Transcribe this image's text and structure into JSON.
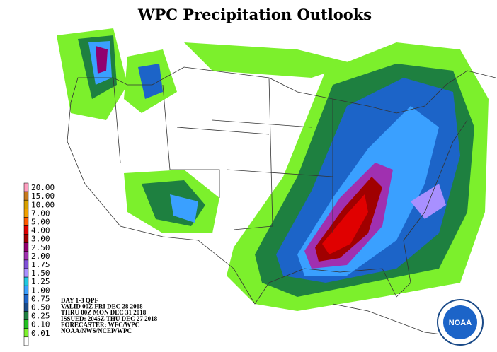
{
  "title": "WPC Precipitation Outlooks",
  "legend": [
    {
      "label": "20.00",
      "color": "#ff9fc0"
    },
    {
      "label": "15.00",
      "color": "#c87a1e"
    },
    {
      "label": "10.00",
      "color": "#d8a000"
    },
    {
      "label": "7.00",
      "color": "#f0a000"
    },
    {
      "label": "5.00",
      "color": "#ff5a00"
    },
    {
      "label": "4.00",
      "color": "#e00000"
    },
    {
      "label": "3.00",
      "color": "#a00000"
    },
    {
      "label": "2.50",
      "color": "#900070"
    },
    {
      "label": "2.00",
      "color": "#a030b0"
    },
    {
      "label": "1.75",
      "color": "#8050d8"
    },
    {
      "label": "1.50",
      "color": "#a890ff"
    },
    {
      "label": "1.25",
      "color": "#20c8e0"
    },
    {
      "label": "1.00",
      "color": "#3aa0ff"
    },
    {
      "label": "0.75",
      "color": "#1c64c8"
    },
    {
      "label": "0.50",
      "color": "#1a4a88"
    },
    {
      "label": "0.25",
      "color": "#1e8040"
    },
    {
      "label": "0.10",
      "color": "#22c020"
    },
    {
      "label": "0.01",
      "color": "#7cf02c"
    }
  ],
  "info": [
    "DAY 1-3 QPF",
    "VALID 00Z FRI DEC 28 2018",
    "THRU 00Z MON DEC 31 2018",
    "ISSUED: 2045Z THU DEC 27 2018",
    "FORECASTER: WFC/WPC",
    "NOAA/NWS/NCEP/WPC"
  ],
  "logo": "NOAA"
}
